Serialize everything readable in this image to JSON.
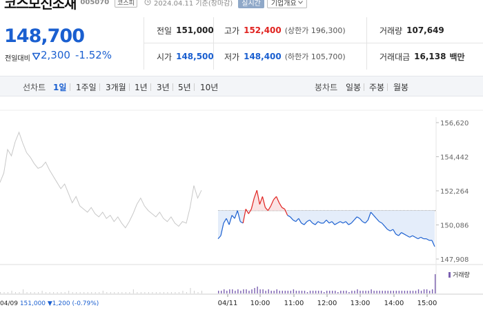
{
  "header": {
    "stock_name": "코스모신소재",
    "stock_code": "005070",
    "market_badge": "코스피",
    "date_text": "2024.04.11  기준(장마감)",
    "realtime_label": "실시간",
    "company_info_label": "기업개요"
  },
  "quote": {
    "price": "148,700",
    "diff_label": "전일대비",
    "diff_value": "2,300",
    "diff_rate": "-1.52%",
    "prev_close_label": "전일",
    "prev_close": "151,000",
    "high_label": "고가",
    "high": "152,400",
    "upper_limit": "(상한가 196,300)",
    "volume_label": "거래량",
    "volume": "107,649",
    "open_label": "시가",
    "open": "148,500",
    "low_label": "저가",
    "low": "148,400",
    "lower_limit": "(하한가 105,700)",
    "amount_label": "거래대금",
    "amount": "16,138",
    "amount_unit": "백만"
  },
  "tabs": {
    "line_chart_label": "선차트",
    "periods": [
      "1일",
      "1주일",
      "3개월",
      "1년",
      "3년",
      "5년",
      "10년"
    ],
    "active_period": "1일",
    "candle_label": "봉차트",
    "candles": [
      "일봉",
      "주봉",
      "월봉"
    ]
  },
  "colors": {
    "up": "#e0221f",
    "down": "#1a5fd0",
    "prev_day_line": "#c8c8c8",
    "fill_below_prev": "#e4edfa",
    "volume_today": "#7a5fb0"
  },
  "chart_data": {
    "type": "line",
    "y_ticks": [
      "156,620",
      "154,442",
      "152,264",
      "150,086",
      "147,908"
    ],
    "ylim": [
      147908,
      156620
    ],
    "reference_price": 151000,
    "x_ticks": [
      "04/11",
      "10:00",
      "11:00",
      "12:00",
      "13:00",
      "14:00",
      "15:00"
    ],
    "prev_day": {
      "label": "04/09",
      "close": "151,000",
      "change": "▼1,200",
      "rate": "(-0.79%)",
      "values": [
        152800,
        153400,
        154900,
        154500,
        155400,
        156000,
        155300,
        154700,
        154400,
        154000,
        153700,
        153800,
        154100,
        153600,
        153200,
        152800,
        152400,
        152700,
        152100,
        151500,
        151900,
        151300,
        151100,
        150900,
        151200,
        150800,
        150600,
        150900,
        150500,
        150700,
        150300,
        150600,
        150200,
        149900,
        150300,
        150800,
        151400,
        151800,
        151300,
        151000,
        150800,
        150600,
        150900,
        150500,
        150300,
        150600,
        150200,
        150000,
        150300,
        150200,
        151200,
        152600,
        151800,
        152300
      ]
    },
    "today": {
      "values": [
        149200,
        149400,
        150200,
        150500,
        150100,
        150700,
        150500,
        151000,
        150300,
        150200,
        151100,
        150800,
        151100,
        151800,
        152300,
        151400,
        151900,
        151200,
        151000,
        151300,
        151700,
        151900,
        151500,
        151200,
        151100,
        150700,
        150600,
        150400,
        150300,
        150500,
        150200,
        150100,
        150300,
        150400,
        150200,
        150100,
        150300,
        150200,
        150200,
        150400,
        150200,
        150300,
        150100,
        150200,
        150300,
        150200,
        150300,
        150100,
        150200,
        150400,
        150600,
        150500,
        150300,
        150200,
        150400,
        150900,
        150700,
        150500,
        150300,
        150200,
        150000,
        149800,
        149700,
        149800,
        149500,
        149400,
        149600,
        149500,
        149400,
        149300,
        149400,
        149300,
        149200,
        149300,
        149200,
        149200,
        149100,
        149100,
        148700
      ]
    },
    "volume_legend": "거래량",
    "volume_prev": [
      1,
      1,
      1,
      2,
      1,
      1,
      3,
      1,
      1,
      1,
      1,
      2,
      1,
      1,
      1,
      1,
      1,
      1,
      2,
      1,
      1,
      1,
      1,
      1,
      1,
      1,
      1,
      2,
      1,
      1,
      1,
      1,
      1,
      1,
      1,
      3,
      1,
      1,
      1,
      1,
      1,
      1,
      1,
      1,
      1,
      1,
      1,
      1,
      2,
      1,
      4,
      2,
      1,
      2
    ],
    "volume_today": [
      2,
      2,
      3,
      2,
      3,
      3,
      2,
      3,
      2,
      3,
      3,
      2,
      3,
      4,
      5,
      3,
      3,
      2,
      3,
      2,
      2,
      3,
      2,
      2,
      2,
      2,
      2,
      3,
      2,
      2,
      2,
      2,
      1,
      2,
      2,
      2,
      2,
      2,
      1,
      2,
      2,
      2,
      2,
      1,
      2,
      2,
      2,
      1,
      2,
      2,
      3,
      2,
      2,
      2,
      2,
      3,
      2,
      2,
      2,
      2,
      2,
      2,
      2,
      2,
      2,
      2,
      2,
      2,
      2,
      2,
      2,
      2,
      3,
      2,
      3,
      3,
      2,
      3,
      14
    ]
  }
}
